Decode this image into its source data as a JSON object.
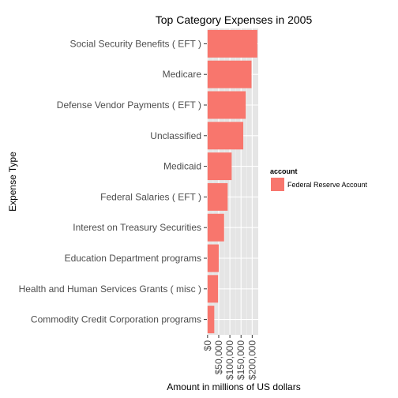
{
  "chart_data": {
    "type": "bar",
    "orientation": "horizontal",
    "title": "Top Category Expenses in 2005",
    "xlabel": "Amount in millions of US dollars",
    "ylabel": "Expense Type",
    "categories": [
      "Social Security Benefits ( EFT )",
      "Medicare",
      "Defense Vendor Payments ( EFT )",
      "Unclassified",
      "Medicaid",
      "Federal Salaries ( EFT )",
      "Interest on Treasury Securities",
      "Education Department programs",
      "Health and Human Services Grants ( misc )",
      "Commodity Credit Corporation programs"
    ],
    "series": [
      {
        "name": "Federal Reserve Account",
        "color": "#F8766D",
        "values": [
          223000,
          197000,
          171000,
          160000,
          108000,
          90000,
          74000,
          50000,
          47000,
          30000
        ]
      }
    ],
    "xlim": [
      -3000,
      227000
    ],
    "xticks": [
      0,
      50000,
      100000,
      150000,
      200000
    ],
    "xtick_labels": [
      "$0",
      "$50,000",
      "$100,000",
      "$150,000",
      "$200,000"
    ],
    "grid": true,
    "panel_background": "#E5E5E5",
    "legend": {
      "title": "account",
      "position": "right",
      "entries": [
        "Federal Reserve Account"
      ]
    }
  }
}
